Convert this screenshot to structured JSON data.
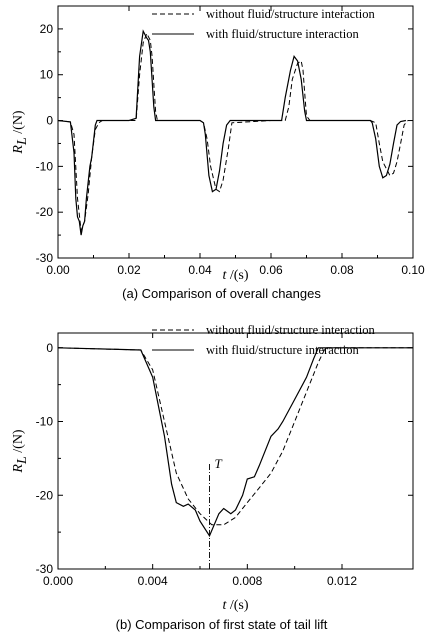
{
  "chart_data": [
    {
      "type": "line",
      "caption": "(a)  Comparison of overall changes",
      "xlabel": "t",
      "xunit": " /(s)",
      "ylabel": "R",
      "ylabel_sub": "L",
      "yunit": " /(N)",
      "xlim": [
        0.0,
        0.1
      ],
      "ylim": [
        -30,
        25
      ],
      "xticks": [
        "0.00",
        "0.02",
        "0.04",
        "0.06",
        "0.08",
        "0.10"
      ],
      "yticks": [
        "-30",
        "-20",
        "-10",
        "0",
        "10",
        "20"
      ],
      "grid": false,
      "legend_position": "top-right",
      "series": [
        {
          "name": "without fluid/structure interaction",
          "style": "dashed",
          "x": [
            0.0,
            0.0035,
            0.0045,
            0.0055,
            0.0065,
            0.0075,
            0.0085,
            0.0095,
            0.0105,
            0.0115,
            0.0125,
            0.02,
            0.022,
            0.023,
            0.024,
            0.025,
            0.026,
            0.0265,
            0.027,
            0.0275,
            0.028,
            0.03,
            0.04,
            0.041,
            0.042,
            0.043,
            0.0445,
            0.0455,
            0.0465,
            0.048,
            0.049,
            0.06,
            0.064,
            0.065,
            0.066,
            0.0675,
            0.0685,
            0.069,
            0.0695,
            0.07,
            0.071,
            0.072,
            0.088,
            0.0895,
            0.0905,
            0.0915,
            0.0935,
            0.0945,
            0.0955,
            0.0965,
            0.0975,
            0.0985
          ],
          "y": [
            0,
            -0.3,
            -3,
            -17,
            -24,
            -22,
            -16,
            -8,
            -2,
            -0.5,
            0,
            0,
            0,
            10,
            17,
            19,
            17.5,
            14,
            8,
            2,
            0,
            0,
            0,
            -0.5,
            -4,
            -10,
            -15,
            -15.5,
            -13,
            -6,
            -0.5,
            0,
            0,
            3,
            9,
            12.5,
            13,
            11,
            6,
            1,
            0,
            0,
            0,
            -0.5,
            -5,
            -9,
            -12,
            -11.5,
            -9,
            -5,
            -1,
            0
          ]
        },
        {
          "name": "with fluid/structure interaction",
          "style": "solid",
          "x": [
            0.0,
            0.0035,
            0.0045,
            0.005,
            0.0055,
            0.006,
            0.0065,
            0.007,
            0.0075,
            0.008,
            0.009,
            0.0095,
            0.0105,
            0.011,
            0.0125,
            0.02,
            0.022,
            0.023,
            0.024,
            0.025,
            0.0255,
            0.026,
            0.027,
            0.0275,
            0.03,
            0.04,
            0.041,
            0.0415,
            0.0425,
            0.0435,
            0.0445,
            0.0455,
            0.0465,
            0.0475,
            0.0485,
            0.0495,
            0.06,
            0.063,
            0.064,
            0.0655,
            0.0665,
            0.0675,
            0.0685,
            0.0695,
            0.07,
            0.071,
            0.088,
            0.0885,
            0.0895,
            0.0905,
            0.0915,
            0.0925,
            0.0935,
            0.0945,
            0.0955,
            0.0965,
            0.098
          ],
          "y": [
            0,
            -0.3,
            -7,
            -17,
            -21,
            -22,
            -25,
            -23,
            -22,
            -17,
            -10,
            -8,
            -1,
            0,
            0,
            0,
            0.5,
            14,
            19.5,
            18,
            17.5,
            15,
            3,
            0,
            0,
            0,
            -0.5,
            -3,
            -12,
            -15.5,
            -15,
            -11,
            -5,
            -1,
            0,
            0,
            0,
            0,
            5,
            11,
            14,
            13,
            9,
            2,
            0,
            0,
            0,
            -0.5,
            -4,
            -10,
            -12.5,
            -12,
            -9.5,
            -5,
            -1,
            -0.2,
            0
          ]
        }
      ]
    },
    {
      "type": "line",
      "caption": "(b) Comparison of first state of tail lift",
      "xlabel": "t",
      "xunit": " /(s)",
      "ylabel": "R",
      "ylabel_sub": "L",
      "yunit": " /(N)",
      "xlim": [
        0.0,
        0.015
      ],
      "ylim": [
        -30,
        2
      ],
      "xticks": [
        "0.000",
        "0.004",
        "0.008",
        "0.012"
      ],
      "yticks": [
        "-30",
        "-20",
        "-10",
        "0"
      ],
      "grid": false,
      "legend_position": "top-right",
      "annotation": {
        "label": "T",
        "x": 0.0064
      },
      "series": [
        {
          "name": "without fluid/structure interaction",
          "style": "dashed",
          "x": [
            0.0,
            0.0035,
            0.004,
            0.0045,
            0.005,
            0.0055,
            0.006,
            0.0065,
            0.007,
            0.0075,
            0.008,
            0.0085,
            0.009,
            0.0095,
            0.01,
            0.0105,
            0.011,
            0.0113,
            0.015
          ],
          "y": [
            0,
            -0.3,
            -3,
            -10,
            -17,
            -20.5,
            -22.5,
            -24,
            -24,
            -23,
            -21,
            -19,
            -17,
            -14,
            -10,
            -6,
            -2,
            0,
            0
          ]
        },
        {
          "name": "with fluid/structure interaction",
          "style": "solid",
          "x": [
            0.0,
            0.0035,
            0.004,
            0.0045,
            0.0048,
            0.005,
            0.0053,
            0.0055,
            0.0058,
            0.006,
            0.0064,
            0.0068,
            0.007,
            0.0073,
            0.0075,
            0.0078,
            0.008,
            0.0083,
            0.0085,
            0.009,
            0.0093,
            0.0095,
            0.01,
            0.0105,
            0.0108,
            0.011,
            0.015
          ],
          "y": [
            0,
            -0.3,
            -4,
            -12,
            -18.5,
            -21,
            -21.5,
            -21.2,
            -22,
            -23.5,
            -25.5,
            -22.5,
            -21.8,
            -22.5,
            -22,
            -20,
            -17.8,
            -17.5,
            -16,
            -12,
            -11,
            -10,
            -7,
            -4,
            -1.5,
            0,
            0
          ]
        }
      ]
    }
  ]
}
